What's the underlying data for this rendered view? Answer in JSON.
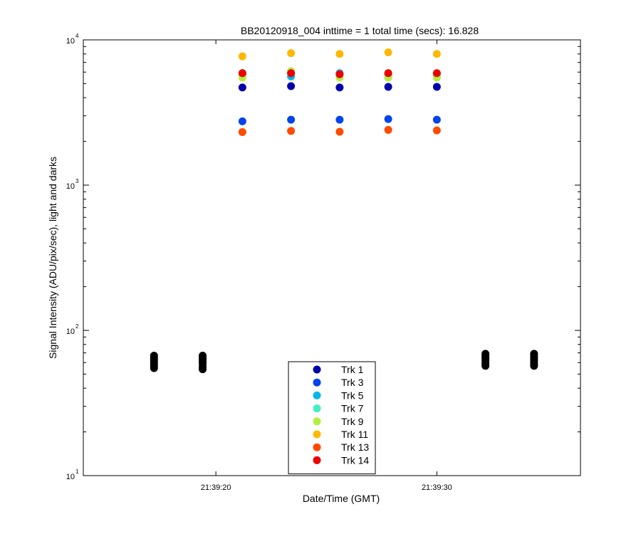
{
  "chart_data": {
    "type": "scatter",
    "title": "BB20120918_004 inttime = 1 total time (secs): 16.828",
    "xlabel": "Date/Time (GMT)",
    "ylabel": "Signal Intensity (ADU/pix/sec), light and darks",
    "x_unit": "seconds after 21:39:00 GMT",
    "xlim": [
      14.0,
      36.5
    ],
    "yscale": "log",
    "ylim": [
      10,
      10000
    ],
    "x_ticks": [
      {
        "value": 20,
        "label": "21:39:20"
      },
      {
        "value": 30,
        "label": "21:39:30"
      }
    ],
    "y_ticks": [
      {
        "value": 10,
        "base": "10",
        "exp": "1"
      },
      {
        "value": 100,
        "base": "10",
        "exp": "2"
      },
      {
        "value": 1000,
        "base": "10",
        "exp": "3"
      },
      {
        "value": 10000,
        "base": "10",
        "exp": "4"
      }
    ],
    "grid": false,
    "legend_position": "bottom-center",
    "light_times": [
      21.2,
      23.4,
      25.6,
      27.8,
      30.0
    ],
    "series": [
      {
        "name": "Trk 1",
        "color": "#0000aa",
        "values": [
          4700,
          4800,
          4700,
          4750,
          4750
        ]
      },
      {
        "name": "Trk 3",
        "color": "#0044ee",
        "values": [
          2750,
          2820,
          2820,
          2850,
          2820
        ]
      },
      {
        "name": "Trk 5",
        "color": "#00b8e6",
        "values": [
          5900,
          5600,
          5900,
          5800,
          5850
        ]
      },
      {
        "name": "Trk 7",
        "color": "#40f0c0",
        "values": [
          5700,
          5900,
          5700,
          5600,
          5700
        ]
      },
      {
        "name": "Trk 9",
        "color": "#b0f040",
        "values": [
          5500,
          6100,
          5500,
          5500,
          5500
        ]
      },
      {
        "name": "Trk 11",
        "color": "#ffb800",
        "values": [
          7700,
          8100,
          8000,
          8200,
          8000
        ]
      },
      {
        "name": "Trk 13",
        "color": "#ff4a00",
        "values": [
          2320,
          2360,
          2330,
          2400,
          2380
        ]
      },
      {
        "name": "Trk 14",
        "color": "#ee0000",
        "values": [
          5900,
          5900,
          5800,
          5900,
          5900
        ]
      }
    ],
    "darks": {
      "name": "darks",
      "color": "#000000",
      "x": [
        17.2,
        19.4,
        32.2,
        34.4
      ],
      "values": [
        [
          55,
          57,
          59,
          61,
          63,
          65,
          67
        ],
        [
          54,
          56,
          59,
          61,
          63,
          65,
          67
        ],
        [
          57,
          59,
          61,
          63,
          65,
          67,
          69
        ],
        [
          57,
          59,
          61,
          63,
          65,
          67,
          69
        ]
      ]
    }
  }
}
